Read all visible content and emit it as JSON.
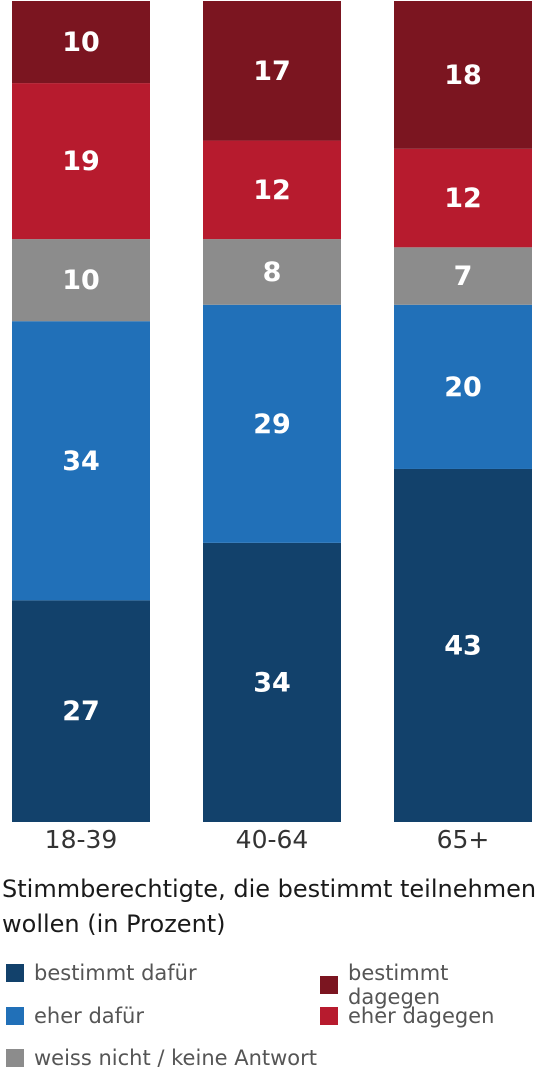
{
  "chart_data": {
    "type": "bar",
    "stacked": true,
    "categories": [
      "18-39",
      "40-64",
      "65+"
    ],
    "series": [
      {
        "name": "bestimmt dafür",
        "color": "#12416b",
        "values": [
          27,
          34,
          43
        ]
      },
      {
        "name": "eher dafür",
        "color": "#2170b8",
        "values": [
          34,
          29,
          20
        ]
      },
      {
        "name": "weiss nicht / keine Antwort",
        "color": "#8c8c8c",
        "values": [
          10,
          8,
          7
        ]
      },
      {
        "name": "eher dagegen",
        "color": "#b71b2e",
        "values": [
          19,
          12,
          12
        ]
      },
      {
        "name": "bestimmt dagegen",
        "color": "#7b1520",
        "values": [
          10,
          17,
          18
        ]
      }
    ],
    "subtitle": "Stimmberechtigte, die bestimmt teilnehmen wollen (in Prozent)",
    "ylim": [
      0,
      100
    ],
    "legend_position": "bottom"
  }
}
